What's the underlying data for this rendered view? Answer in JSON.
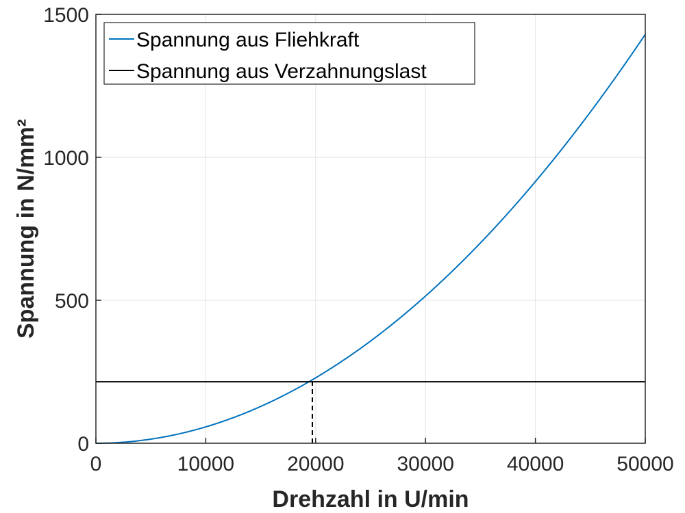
{
  "chart_data": {
    "type": "line",
    "xlabel": "Drehzahl in U/min",
    "ylabel": "Spannung in N/mm²",
    "xlim": [
      0,
      50000
    ],
    "ylim": [
      0,
      1500
    ],
    "xticks": [
      0,
      10000,
      20000,
      30000,
      40000,
      50000
    ],
    "yticks": [
      0,
      500,
      1000,
      1500
    ],
    "xtick_labels": [
      "0",
      "10000",
      "20000",
      "30000",
      "40000",
      "50000"
    ],
    "ytick_labels": [
      "0",
      "500",
      "1000",
      "1500"
    ],
    "grid": true,
    "legend_position": "top-left",
    "series": [
      {
        "name": "Spannung aus Fliehkraft",
        "color": "#0072BD",
        "style": "solid",
        "x": [
          0,
          5000,
          10000,
          15000,
          20000,
          25000,
          30000,
          35000,
          40000,
          45000,
          50000
        ],
        "y": [
          0,
          14,
          55,
          125,
          220,
          345,
          500,
          680,
          905,
          1160,
          1430
        ]
      },
      {
        "name": "Spannung aus Verzahnungslast",
        "color": "#000000",
        "style": "solid",
        "x": [
          0,
          50000
        ],
        "y": [
          215,
          215
        ]
      }
    ],
    "annotations": [
      {
        "type": "dashed-vertical",
        "x": 19700,
        "y_from": 0,
        "y_to": 215,
        "color": "#000000"
      }
    ]
  }
}
